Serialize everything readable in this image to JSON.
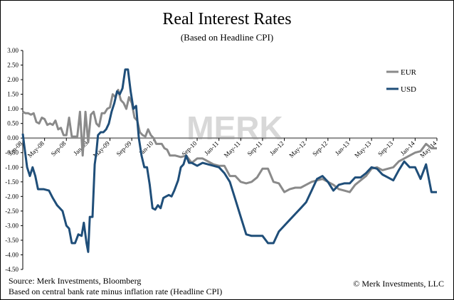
{
  "chart_data": {
    "type": "line",
    "title": "Real Interest Rates",
    "subtitle": "(Based on Headline CPI)",
    "ylim": [
      -4.5,
      3.0
    ],
    "yticks": [
      "3.00",
      "2.50",
      "2.00",
      "1.50",
      "1.00",
      "0.50",
      "0.00",
      "-0.50",
      "-1.00",
      "-1.50",
      "-2.00",
      "-2.50",
      "-3.00",
      "-3.50",
      "-4.00",
      "-4.50"
    ],
    "xlim": [
      0,
      76
    ],
    "xticks": [
      {
        "label": "Jan-08",
        "x": 0
      },
      {
        "label": "May-08",
        "x": 4
      },
      {
        "label": "Sep-08",
        "x": 8
      },
      {
        "label": "Jan-09",
        "x": 12
      },
      {
        "label": "May-09",
        "x": 16
      },
      {
        "label": "Sep-09",
        "x": 20
      },
      {
        "label": "Jan-10",
        "x": 24
      },
      {
        "label": "Sep-10",
        "x": 32
      },
      {
        "label": "Jan-11",
        "x": 36
      },
      {
        "label": "May-11",
        "x": 40
      },
      {
        "label": "Sep-11",
        "x": 44
      },
      {
        "label": "Jan-12",
        "x": 48
      },
      {
        "label": "May-12",
        "x": 52
      },
      {
        "label": "Sep-12",
        "x": 56
      },
      {
        "label": "Jan-13",
        "x": 60
      },
      {
        "label": "May-13",
        "x": 64
      },
      {
        "label": "Sep-13",
        "x": 68
      },
      {
        "label": "Jan-14",
        "x": 72
      },
      {
        "label": "May-14",
        "x": 76
      }
    ],
    "legend_position": "top-right",
    "grid": false,
    "series": [
      {
        "name": "EUR",
        "color": "#8a8a8a",
        "points": [
          [
            0,
            0.9
          ],
          [
            0.5,
            0.85
          ],
          [
            1,
            0.85
          ],
          [
            1.5,
            0.8
          ],
          [
            2,
            0.85
          ],
          [
            2.5,
            0.55
          ],
          [
            3,
            0.5
          ],
          [
            3.5,
            0.7
          ],
          [
            4,
            0.65
          ],
          [
            4.5,
            0.45
          ],
          [
            5,
            0.5
          ],
          [
            5.5,
            0.45
          ],
          [
            6,
            0.6
          ],
          [
            6.5,
            0.3
          ],
          [
            7,
            0.35
          ],
          [
            7.5,
            0.1
          ],
          [
            8,
            0.1
          ],
          [
            8.5,
            0.7
          ],
          [
            9,
            0.05
          ],
          [
            9.5,
            0.05
          ],
          [
            10,
            0.05
          ],
          [
            10.5,
            0.9
          ],
          [
            11,
            -0.6
          ],
          [
            11.5,
            0.9
          ],
          [
            12,
            -0.15
          ],
          [
            12.5,
            0.8
          ],
          [
            13,
            0.9
          ],
          [
            13.5,
            0.5
          ],
          [
            14,
            0.4
          ],
          [
            14.5,
            0.85
          ],
          [
            15,
            0.85
          ],
          [
            15.5,
            1.0
          ],
          [
            16,
            1.05
          ],
          [
            16.5,
            1.5
          ],
          [
            17,
            1.4
          ],
          [
            17.5,
            1.65
          ],
          [
            18,
            1.3
          ],
          [
            18.5,
            1.2
          ],
          [
            19,
            1.0
          ],
          [
            19.5,
            1.4
          ],
          [
            20,
            1.2
          ],
          [
            20.5,
            0.7
          ],
          [
            21,
            0.6
          ],
          [
            21.5,
            0.2
          ],
          [
            22,
            0.1
          ],
          [
            22.5,
            0.05
          ],
          [
            23,
            0.3
          ],
          [
            23.5,
            0.1
          ],
          [
            24,
            0.0
          ],
          [
            24.5,
            -0.2
          ],
          [
            25,
            -0.2
          ],
          [
            25.5,
            -0.2
          ],
          [
            26,
            -0.35
          ],
          [
            26.5,
            -0.4
          ],
          [
            27,
            -0.6
          ],
          [
            28,
            -0.6
          ],
          [
            29,
            -0.65
          ],
          [
            30,
            -0.6
          ],
          [
            31,
            -0.85
          ],
          [
            32,
            -0.7
          ],
          [
            33,
            -0.7
          ],
          [
            34,
            -0.8
          ],
          [
            35,
            -0.9
          ],
          [
            36,
            -0.95
          ],
          [
            37,
            -0.95
          ],
          [
            38,
            -1.3
          ],
          [
            39,
            -1.3
          ],
          [
            40,
            -1.5
          ],
          [
            41,
            -1.55
          ],
          [
            42,
            -1.5
          ],
          [
            43,
            -1.35
          ],
          [
            44,
            -1.05
          ],
          [
            45,
            -1.05
          ],
          [
            46,
            -1.5
          ],
          [
            47,
            -1.55
          ],
          [
            48,
            -1.85
          ],
          [
            49,
            -1.75
          ],
          [
            50,
            -1.7
          ],
          [
            51,
            -1.7
          ],
          [
            52,
            -1.6
          ],
          [
            53,
            -1.5
          ],
          [
            54,
            -1.45
          ],
          [
            55,
            -1.4
          ],
          [
            56,
            -1.5
          ],
          [
            57,
            -1.6
          ],
          [
            58,
            -1.75
          ],
          [
            59,
            -1.8
          ],
          [
            60,
            -1.85
          ],
          [
            61,
            -1.6
          ],
          [
            62,
            -1.45
          ],
          [
            63,
            -1.3
          ],
          [
            64,
            -1.05
          ],
          [
            65,
            -1.0
          ],
          [
            66,
            -1.1
          ],
          [
            67,
            -1.05
          ],
          [
            68,
            -1.0
          ],
          [
            69,
            -0.8
          ],
          [
            70,
            -0.7
          ],
          [
            71,
            -0.6
          ],
          [
            72,
            -0.5
          ],
          [
            73,
            -0.45
          ],
          [
            74,
            -0.2
          ],
          [
            75,
            -0.35
          ],
          [
            76,
            -0.35
          ]
        ]
      },
      {
        "name": "USD",
        "color": "#1f4e79",
        "points": [
          [
            0,
            0.15
          ],
          [
            0.3,
            -0.3
          ],
          [
            0.8,
            -1.0
          ],
          [
            1.3,
            -1.3
          ],
          [
            1.8,
            -1.0
          ],
          [
            2.3,
            -1.3
          ],
          [
            2.8,
            -1.75
          ],
          [
            3.8,
            -1.75
          ],
          [
            4.8,
            -1.8
          ],
          [
            5.5,
            -2.05
          ],
          [
            6.3,
            -2.3
          ],
          [
            7.3,
            -2.5
          ],
          [
            8.0,
            -3.0
          ],
          [
            8.5,
            -3.1
          ],
          [
            9.0,
            -3.6
          ],
          [
            9.6,
            -3.6
          ],
          [
            10.2,
            -3.3
          ],
          [
            10.8,
            -3.35
          ],
          [
            11.2,
            -2.9
          ],
          [
            11.7,
            -3.6
          ],
          [
            12.0,
            -3.9
          ],
          [
            12.3,
            -2.7
          ],
          [
            12.8,
            -2.7
          ],
          [
            13.2,
            -0.9
          ],
          [
            13.5,
            -0.5
          ],
          [
            13.8,
            0.1
          ],
          [
            14.3,
            0.2
          ],
          [
            14.8,
            0.2
          ],
          [
            15.3,
            0.3
          ],
          [
            15.8,
            0.5
          ],
          [
            16.3,
            0.9
          ],
          [
            16.8,
            1.2
          ],
          [
            17.3,
            1.6
          ],
          [
            17.8,
            1.5
          ],
          [
            18.3,
            1.7
          ],
          [
            18.8,
            2.35
          ],
          [
            19.3,
            2.35
          ],
          [
            19.8,
            1.6
          ],
          [
            20.3,
            1.0
          ],
          [
            20.8,
            1.1
          ],
          [
            21.3,
            0.0
          ],
          [
            21.8,
            -0.6
          ],
          [
            22.3,
            -1.0
          ],
          [
            22.8,
            -1.0
          ],
          [
            23.3,
            -1.6
          ],
          [
            23.8,
            -2.4
          ],
          [
            24.3,
            -2.45
          ],
          [
            24.8,
            -2.3
          ],
          [
            25.3,
            -2.4
          ],
          [
            25.8,
            -2.05
          ],
          [
            26.3,
            -2.0
          ],
          [
            26.8,
            -1.95
          ],
          [
            27.3,
            -2.0
          ],
          [
            27.8,
            -1.8
          ],
          [
            28.5,
            -1.45
          ],
          [
            29.0,
            -1.0
          ],
          [
            29.5,
            -0.9
          ],
          [
            30.0,
            -0.6
          ],
          [
            30.5,
            -0.85
          ],
          [
            31,
            -0.85
          ],
          [
            32,
            -0.95
          ],
          [
            33,
            -0.85
          ],
          [
            34,
            -0.9
          ],
          [
            35,
            -0.95
          ],
          [
            36,
            -1.0
          ],
          [
            37,
            -1.2
          ],
          [
            38,
            -1.5
          ],
          [
            39,
            -2.1
          ],
          [
            40,
            -2.7
          ],
          [
            41,
            -3.3
          ],
          [
            42,
            -3.35
          ],
          [
            43,
            -3.35
          ],
          [
            44,
            -3.35
          ],
          [
            45,
            -3.6
          ],
          [
            46,
            -3.6
          ],
          [
            47,
            -3.2
          ],
          [
            48,
            -3.0
          ],
          [
            49,
            -2.8
          ],
          [
            50,
            -2.6
          ],
          [
            51,
            -2.4
          ],
          [
            52,
            -2.2
          ],
          [
            53,
            -1.8
          ],
          [
            54,
            -1.4
          ],
          [
            55,
            -1.3
          ],
          [
            56,
            -1.5
          ],
          [
            57,
            -1.8
          ],
          [
            58,
            -1.6
          ],
          [
            59,
            -1.55
          ],
          [
            60,
            -1.55
          ],
          [
            61,
            -1.35
          ],
          [
            62,
            -1.35
          ],
          [
            63,
            -1.2
          ],
          [
            64,
            -1.0
          ],
          [
            65,
            -1.05
          ],
          [
            66,
            -1.25
          ],
          [
            67,
            -1.35
          ],
          [
            68,
            -1.45
          ],
          [
            69,
            -1.1
          ],
          [
            70,
            -0.8
          ],
          [
            71,
            -1.0
          ],
          [
            72,
            -1.0
          ],
          [
            73,
            -1.4
          ],
          [
            74,
            -0.9
          ],
          [
            75,
            -1.85
          ],
          [
            76,
            -1.85
          ]
        ]
      }
    ]
  },
  "watermark": "MERK",
  "footer": {
    "source": "Source: Merk Investments, Bloomberg",
    "basis": "Based on central bank rate minus inflation rate (Headline CPI)",
    "copyright": "© Merk Investments, LLC"
  }
}
